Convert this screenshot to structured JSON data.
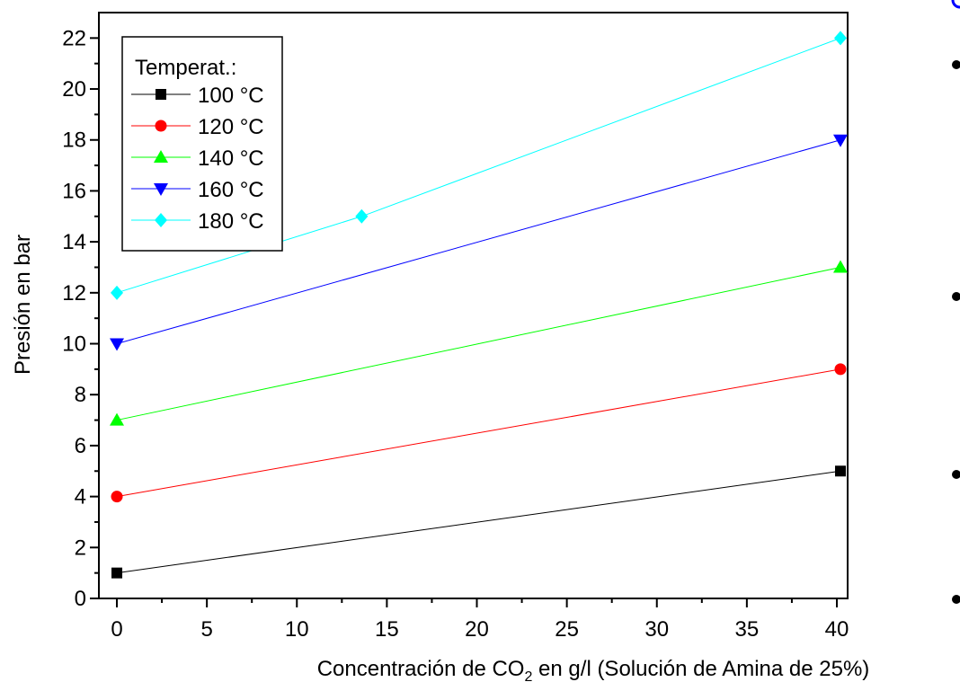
{
  "chart_data": {
    "type": "line",
    "title": "",
    "ylabel": "Presión en bar",
    "xlabel_parts": {
      "before": "Concentración de CO",
      "subscript": "2",
      "after": " en g/l (Solución de Amina de 25%)"
    },
    "xlim": [
      -1,
      40.6
    ],
    "ylim": [
      0,
      23
    ],
    "xticks": [
      0,
      5,
      10,
      15,
      20,
      25,
      30,
      35,
      40
    ],
    "yticks": [
      0,
      2,
      4,
      6,
      8,
      10,
      12,
      14,
      16,
      18,
      20,
      22
    ],
    "legend": {
      "title": "Temperat.:",
      "position": "top-left"
    },
    "series": [
      {
        "name": "100 °C",
        "color": "#000000",
        "marker": "square",
        "x": [
          0,
          40.2
        ],
        "y": [
          1,
          5
        ]
      },
      {
        "name": "120 °C",
        "color": "#ff0000",
        "marker": "circle",
        "x": [
          0,
          40.2
        ],
        "y": [
          4,
          9
        ]
      },
      {
        "name": "140 °C",
        "color": "#00ff00",
        "marker": "triangle-up",
        "x": [
          0,
          40.2
        ],
        "y": [
          7,
          13
        ]
      },
      {
        "name": "160 °C",
        "color": "#0000ff",
        "marker": "triangle-down",
        "x": [
          0,
          40.2
        ],
        "y": [
          10,
          18
        ]
      },
      {
        "name": "180 °C",
        "color": "#00ffff",
        "marker": "diamond",
        "x": [
          0,
          13.6,
          40.2
        ],
        "y": [
          12,
          15,
          22
        ]
      }
    ]
  },
  "decorations": {
    "bullet_color": "#000000",
    "top_right_marker_color": "#0000ff"
  }
}
